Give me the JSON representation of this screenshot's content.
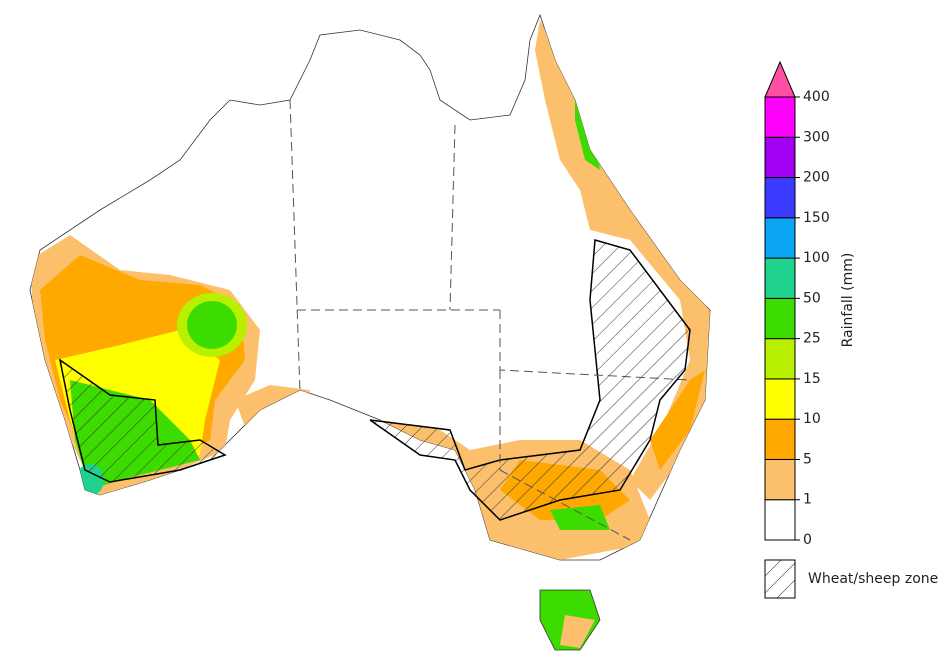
{
  "legend": {
    "title": "Rainfall (mm)",
    "ticks": [
      0,
      1,
      5,
      10,
      15,
      25,
      50,
      100,
      150,
      200,
      300,
      400
    ],
    "colors": [
      "#ffffff",
      "#fcc06c",
      "#ffa800",
      "#ffff00",
      "#b8f000",
      "#3ddc00",
      "#1fd38e",
      "#0aa6f5",
      "#3b3bff",
      "#a100f2",
      "#ff00ff"
    ],
    "over_color": "#ff4fa3",
    "zone_label": "Wheat/sheep zone"
  }
}
